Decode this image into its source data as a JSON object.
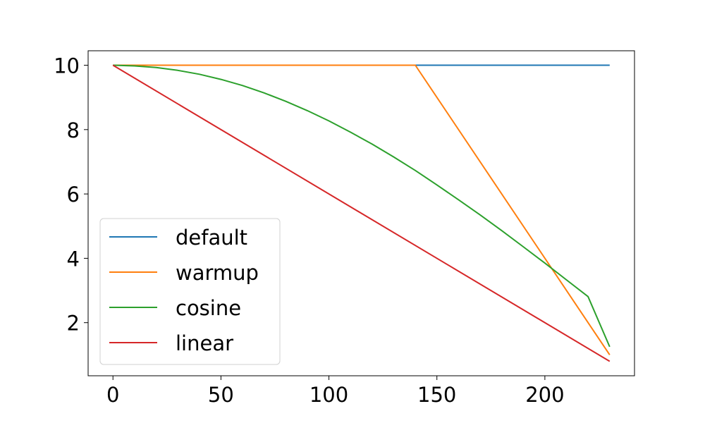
{
  "chart_data": {
    "type": "line",
    "title": "",
    "xlabel": "",
    "ylabel": "",
    "xlim": [
      -11.5,
      241.5
    ],
    "ylim": [
      0.35,
      10.45
    ],
    "xticks": [
      0,
      50,
      100,
      150,
      200
    ],
    "yticks": [
      2,
      4,
      6,
      8,
      10
    ],
    "grid": false,
    "legend_position": "lower-left",
    "series": [
      {
        "name": "default",
        "color": "#1f77b4",
        "points": [
          [
            0,
            10
          ],
          [
            230,
            10
          ]
        ]
      },
      {
        "name": "warmup",
        "color": "#ff7f0e",
        "points": [
          [
            0,
            10
          ],
          [
            140,
            10
          ],
          [
            230,
            1.0
          ]
        ]
      },
      {
        "name": "cosine",
        "color": "#2ca02c",
        "points": [
          [
            0,
            10
          ],
          [
            10,
            9.98
          ],
          [
            20,
            9.93
          ],
          [
            30,
            9.84
          ],
          [
            40,
            9.72
          ],
          [
            50,
            9.56
          ],
          [
            60,
            9.37
          ],
          [
            70,
            9.14
          ],
          [
            80,
            8.88
          ],
          [
            90,
            8.59
          ],
          [
            100,
            8.27
          ],
          [
            110,
            7.92
          ],
          [
            120,
            7.55
          ],
          [
            130,
            7.15
          ],
          [
            140,
            6.73
          ],
          [
            150,
            6.28
          ],
          [
            160,
            5.82
          ],
          [
            170,
            5.35
          ],
          [
            180,
            4.86
          ],
          [
            190,
            4.36
          ],
          [
            200,
            3.85
          ],
          [
            210,
            3.33
          ],
          [
            220,
            2.81
          ],
          [
            230,
            1.25
          ]
        ]
      },
      {
        "name": "linear",
        "color": "#d62728",
        "points": [
          [
            0,
            10
          ],
          [
            230,
            0.8
          ]
        ]
      }
    ]
  }
}
